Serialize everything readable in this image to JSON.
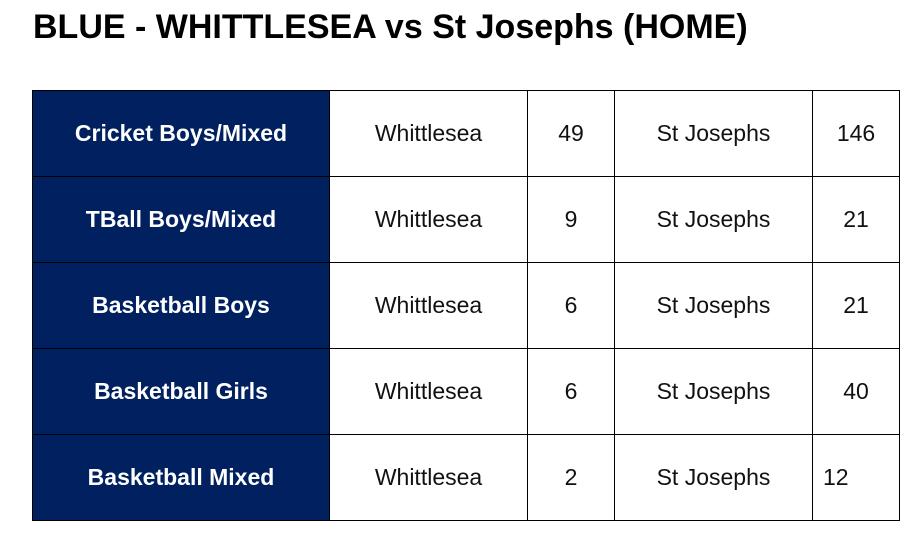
{
  "header": {
    "title": "BLUE - WHITTLESEA vs St Josephs (HOME)"
  },
  "table": {
    "rows": [
      [
        "Cricket Boys/Mixed",
        "Whittlesea",
        49,
        "St Josephs",
        146
      ],
      [
        "TBall Boys/Mixed",
        "Whittlesea",
        9,
        "St Josephs",
        21
      ],
      [
        "Basketball Boys",
        "Whittlesea",
        6,
        "St Josephs",
        21
      ],
      [
        "Basketball Girls",
        "Whittlesea",
        6,
        "St Josephs",
        40
      ],
      [
        "Basketball Mixed",
        "Whittlesea",
        2,
        "St Josephs",
        12
      ]
    ]
  }
}
